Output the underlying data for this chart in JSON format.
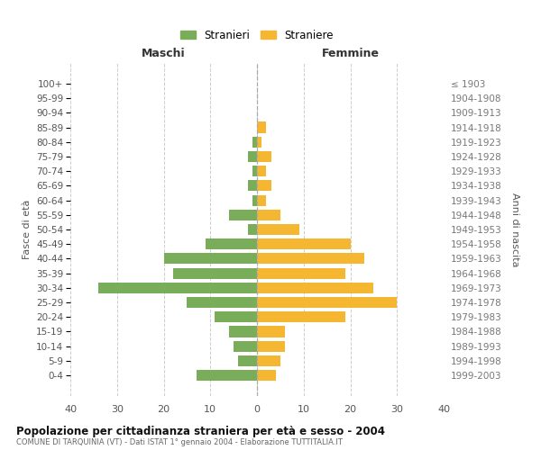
{
  "age_groups": [
    "0-4",
    "5-9",
    "10-14",
    "15-19",
    "20-24",
    "25-29",
    "30-34",
    "35-39",
    "40-44",
    "45-49",
    "50-54",
    "55-59",
    "60-64",
    "65-69",
    "70-74",
    "75-79",
    "80-84",
    "85-89",
    "90-94",
    "95-99",
    "100+"
  ],
  "birth_years": [
    "1999-2003",
    "1994-1998",
    "1989-1993",
    "1984-1988",
    "1979-1983",
    "1974-1978",
    "1969-1973",
    "1964-1968",
    "1959-1963",
    "1954-1958",
    "1949-1953",
    "1944-1948",
    "1939-1943",
    "1934-1938",
    "1929-1933",
    "1924-1928",
    "1919-1923",
    "1914-1918",
    "1909-1913",
    "1904-1908",
    "≤ 1903"
  ],
  "maschi": [
    13,
    4,
    5,
    6,
    9,
    15,
    34,
    18,
    20,
    11,
    2,
    6,
    1,
    2,
    1,
    2,
    1,
    0,
    0,
    0,
    0
  ],
  "femmine": [
    4,
    5,
    6,
    6,
    19,
    30,
    25,
    19,
    23,
    20,
    9,
    5,
    2,
    3,
    2,
    3,
    1,
    2,
    0,
    0,
    0
  ],
  "maschi_color": "#7aad5a",
  "femmine_color": "#f5b731",
  "background_color": "#ffffff",
  "grid_color": "#cccccc",
  "title": "Popolazione per cittadinanza straniera per età e sesso - 2004",
  "subtitle": "COMUNE DI TARQUINIA (VT) - Dati ISTAT 1° gennaio 2004 - Elaborazione TUTTITALIA.IT",
  "left_header": "Maschi",
  "right_header": "Femmine",
  "ylabel_left": "Fasce di età",
  "ylabel_right": "Anni di nascita",
  "legend_maschi": "Stranieri",
  "legend_femmine": "Straniere",
  "xlim": 40
}
